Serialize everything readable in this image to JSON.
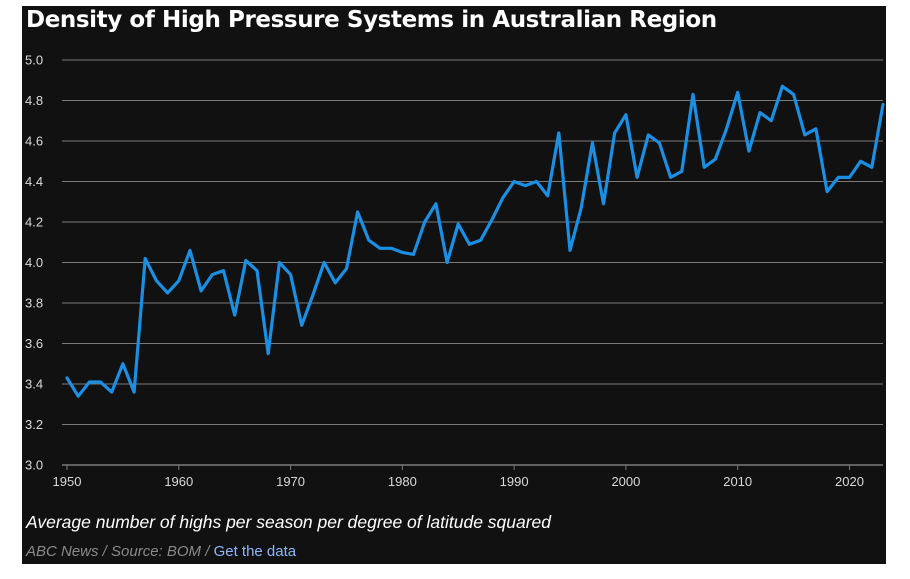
{
  "chart_data": {
    "type": "line",
    "title": "Density of High Pressure Systems in Australian Region",
    "caption": "Average number of highs per season per degree of latitude squared",
    "credit": {
      "prefix": "ABC News / Source: BOM / ",
      "link": "Get the data"
    },
    "xlim": [
      1950,
      2023
    ],
    "ylim": [
      3.0,
      5.0
    ],
    "x_ticks": [
      "1950",
      "1960",
      "1970",
      "1980",
      "1990",
      "2000",
      "2010",
      "2020"
    ],
    "y_ticks": [
      "3.0",
      "3.2",
      "3.4",
      "3.6",
      "3.8",
      "4.0",
      "4.2",
      "4.4",
      "4.6",
      "4.8",
      "5.0"
    ],
    "grid": true,
    "colors": {
      "line": "#1a8fe3",
      "background": "#111111",
      "grid": "#7a7a7a"
    },
    "series": [
      {
        "x": [
          1950,
          1951,
          1952,
          1953,
          1954,
          1955,
          1956,
          1957,
          1958,
          1959,
          1960,
          1961,
          1962,
          1963,
          1964,
          1965,
          1966,
          1967,
          1968,
          1969,
          1970,
          1971,
          1972,
          1973,
          1974,
          1975,
          1976,
          1977,
          1978,
          1979,
          1980,
          1981,
          1982,
          1983,
          1984,
          1985,
          1986,
          1987,
          1988,
          1989,
          1990,
          1991,
          1992,
          1993,
          1994,
          1995,
          1996,
          1997,
          1998,
          1999,
          2000,
          2001,
          2002,
          2003,
          2004,
          2005,
          2006,
          2007,
          2008,
          2009,
          2010,
          2011,
          2012,
          2013,
          2014,
          2015,
          2016,
          2017,
          2018,
          2019,
          2020,
          2021,
          2022,
          2023
        ],
        "values": [
          3.43,
          3.34,
          3.41,
          3.41,
          3.36,
          3.5,
          3.36,
          4.02,
          3.91,
          3.85,
          3.91,
          4.06,
          3.86,
          3.94,
          3.96,
          3.74,
          4.01,
          3.96,
          3.55,
          4.0,
          3.94,
          3.69,
          3.84,
          4.0,
          3.9,
          3.97,
          4.25,
          4.11,
          4.07,
          4.07,
          4.05,
          4.04,
          4.2,
          4.29,
          4.0,
          4.19,
          4.09,
          4.11,
          4.21,
          4.32,
          4.4,
          4.38,
          4.4,
          4.33,
          4.64,
          4.06,
          4.27,
          4.59,
          4.29,
          4.64,
          4.73,
          4.42,
          4.63,
          4.59,
          4.42,
          4.45,
          4.83,
          4.47,
          4.51,
          4.66,
          4.84,
          4.55,
          4.74,
          4.7,
          4.87,
          4.83,
          4.63,
          4.66,
          4.35,
          4.42,
          4.42,
          4.5,
          4.47,
          4.78
        ]
      }
    ]
  }
}
